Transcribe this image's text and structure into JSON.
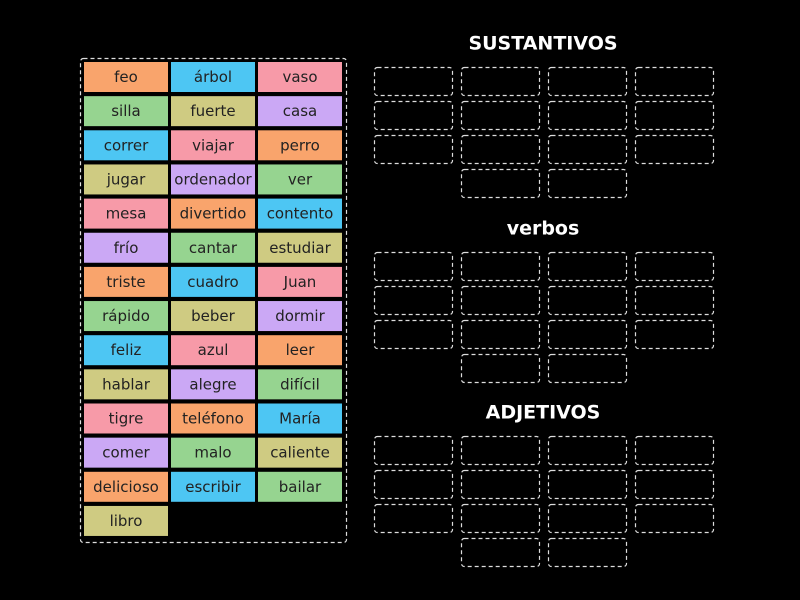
{
  "tiles": [
    {
      "label": "feo",
      "color": "#f9a46c"
    },
    {
      "label": "árbol",
      "color": "#4dc6f3"
    },
    {
      "label": "vaso",
      "color": "#f79aa8"
    },
    {
      "label": "silla",
      "color": "#96d490"
    },
    {
      "label": "fuerte",
      "color": "#cfcb82"
    },
    {
      "label": "casa",
      "color": "#cba8f5"
    },
    {
      "label": "correr",
      "color": "#4dc6f3"
    },
    {
      "label": "viajar",
      "color": "#f79aa8"
    },
    {
      "label": "perro",
      "color": "#f9a46c"
    },
    {
      "label": "jugar",
      "color": "#cfcb82"
    },
    {
      "label": "ordenador",
      "color": "#cba8f5"
    },
    {
      "label": "ver",
      "color": "#96d490"
    },
    {
      "label": "mesa",
      "color": "#f79aa8"
    },
    {
      "label": "divertido",
      "color": "#f9a46c"
    },
    {
      "label": "contento",
      "color": "#4dc6f3"
    },
    {
      "label": "frío",
      "color": "#cba8f5"
    },
    {
      "label": "cantar",
      "color": "#96d490"
    },
    {
      "label": "estudiar",
      "color": "#cfcb82"
    },
    {
      "label": "triste",
      "color": "#f9a46c"
    },
    {
      "label": "cuadro",
      "color": "#4dc6f3"
    },
    {
      "label": "Juan",
      "color": "#f79aa8"
    },
    {
      "label": "rápido",
      "color": "#96d490"
    },
    {
      "label": "beber",
      "color": "#cfcb82"
    },
    {
      "label": "dormir",
      "color": "#cba8f5"
    },
    {
      "label": "feliz",
      "color": "#4dc6f3"
    },
    {
      "label": "azul",
      "color": "#f79aa8"
    },
    {
      "label": "leer",
      "color": "#f9a46c"
    },
    {
      "label": "hablar",
      "color": "#cfcb82"
    },
    {
      "label": "alegre",
      "color": "#cba8f5"
    },
    {
      "label": "difícil",
      "color": "#96d490"
    },
    {
      "label": "tigre",
      "color": "#f79aa8"
    },
    {
      "label": "teléfono",
      "color": "#f9a46c"
    },
    {
      "label": "María",
      "color": "#4dc6f3"
    },
    {
      "label": "comer",
      "color": "#cba8f5"
    },
    {
      "label": "malo",
      "color": "#96d490"
    },
    {
      "label": "caliente",
      "color": "#cfcb82"
    },
    {
      "label": "delicioso",
      "color": "#f9a46c"
    },
    {
      "label": "escribir",
      "color": "#4dc6f3"
    },
    {
      "label": "bailar",
      "color": "#96d490"
    },
    {
      "label": "libro",
      "color": "#cfcb82"
    }
  ],
  "groups": [
    {
      "title": "SUSTANTIVOS"
    },
    {
      "title": "verbos"
    },
    {
      "title": "ADJETIVOS"
    }
  ]
}
